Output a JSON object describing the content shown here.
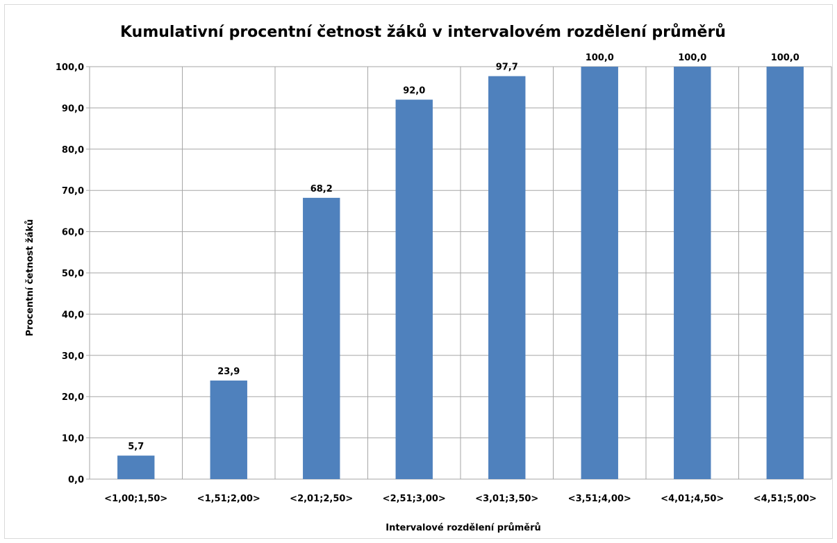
{
  "chart_data": {
    "type": "bar",
    "title": "Kumulativní procentní četnost žáků v intervalovém rozdělení průměrů",
    "xlabel": "Intervalové rozdělení průměrů",
    "ylabel": "Procentní četnost žáků",
    "categories": [
      "<1,00;1,50>",
      "<1,51;2,00>",
      "<2,01;2,50>",
      "<2,51;3,00>",
      "<3,01;3,50>",
      "<3,51;4,00>",
      "<4,01;4,50>",
      "<4,51;5,00>"
    ],
    "values": [
      5.7,
      23.9,
      68.2,
      92.0,
      97.7,
      100.0,
      100.0,
      100.0
    ],
    "data_labels": [
      "5,7",
      "23,9",
      "68,2",
      "92,0",
      "97,7",
      "100,0",
      "100,0",
      "100,0"
    ],
    "ylim": [
      0,
      100
    ],
    "y_ticks": [
      0,
      10,
      20,
      30,
      40,
      50,
      60,
      70,
      80,
      90,
      100
    ],
    "y_tick_labels": [
      "0,0",
      "10,0",
      "20,0",
      "30,0",
      "40,0",
      "50,0",
      "60,0",
      "70,0",
      "80,0",
      "90,0",
      "100,0"
    ],
    "grid": true,
    "bar_color": "#4f81bd",
    "grid_color": "#a6a6a6"
  }
}
